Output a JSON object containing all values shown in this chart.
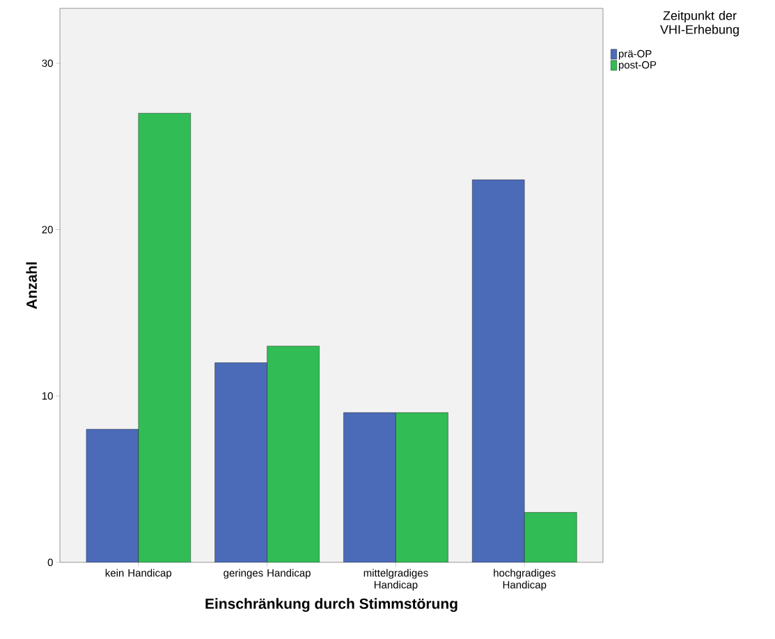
{
  "chart_data": {
    "type": "bar",
    "xlabel": "Einschränkung durch Stimmstörung",
    "ylabel": "Anzahl",
    "legend_title": "Zeitpunkt der VHI-Erhebung",
    "categories": [
      "kein Handicap",
      "geringes Handicap",
      "mittelgradiges Handicap",
      "hochgradiges Handicap"
    ],
    "series": [
      {
        "name": "prä-OP",
        "color": "#4b6bb9",
        "values": [
          8,
          12,
          9,
          23
        ]
      },
      {
        "name": "post-OP",
        "color": "#32bc55",
        "values": [
          27,
          13,
          9,
          3
        ]
      }
    ],
    "ylim": [
      0,
      33.3
    ],
    "yticks": [
      0,
      10,
      20,
      30
    ],
    "grid": false,
    "legend": "top right"
  }
}
